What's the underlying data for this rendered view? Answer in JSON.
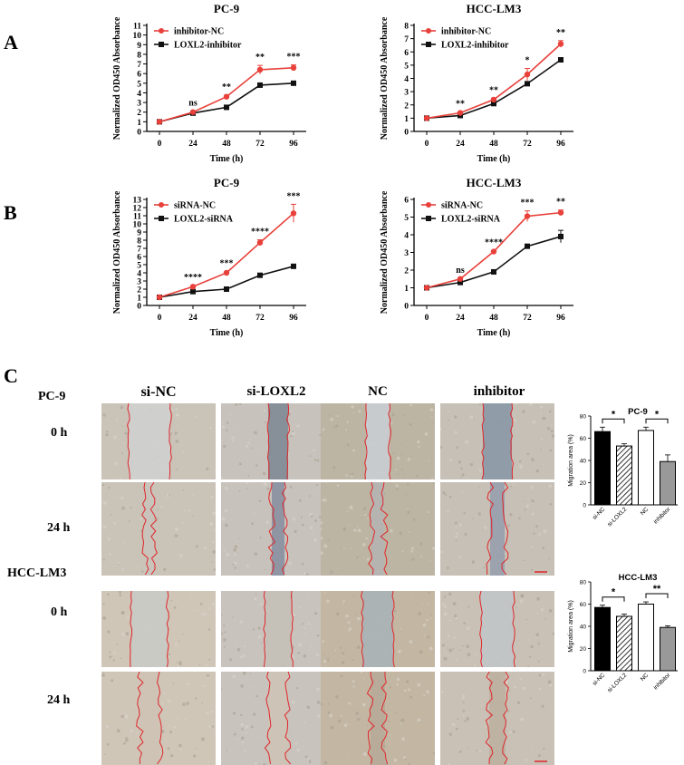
{
  "panels": {
    "A": "A",
    "B": "B",
    "C": "C"
  },
  "colors": {
    "red": "#e8403a",
    "black": "#111111",
    "grid_red": "#e0262b"
  },
  "chart_data": [
    {
      "type": "line",
      "title": "PC-9",
      "xlabel": "Time (h)",
      "ylabel": "Normalized OD450 Absorbance",
      "x": [
        0,
        24,
        48,
        72,
        96
      ],
      "xticks": [
        "0",
        "24",
        "48",
        "72",
        "96"
      ],
      "ylim": [
        0,
        11
      ],
      "yticks": [
        0,
        1,
        2,
        3,
        4,
        5,
        6,
        7,
        8,
        9,
        10,
        11
      ],
      "series": [
        {
          "name": "inhibitor-NC",
          "color": "#e8403a",
          "values": [
            1,
            2.0,
            3.6,
            6.4,
            6.6
          ],
          "err": [
            0.05,
            0.1,
            0.15,
            0.45,
            0.3
          ]
        },
        {
          "name": "LOXL2-inhibitor",
          "color": "#111111",
          "values": [
            1,
            1.9,
            2.5,
            4.8,
            5.0
          ],
          "err": [
            0.05,
            0.08,
            0.1,
            0.15,
            0.1
          ]
        }
      ],
      "annotations": [
        "",
        "ns",
        "**",
        "**",
        "***"
      ]
    },
    {
      "type": "line",
      "title": "HCC-LM3",
      "xlabel": "Time (h)",
      "ylabel": "Normalized OD450 Absorbance",
      "x": [
        0,
        24,
        48,
        72,
        96
      ],
      "xticks": [
        "0",
        "24",
        "48",
        "72",
        "96"
      ],
      "ylim": [
        0,
        8
      ],
      "yticks": [
        0,
        1,
        2,
        3,
        4,
        5,
        6,
        7,
        8
      ],
      "series": [
        {
          "name": "inhibitor-NC",
          "color": "#e8403a",
          "values": [
            1,
            1.4,
            2.4,
            4.3,
            6.6
          ],
          "err": [
            0.05,
            0.08,
            0.1,
            0.45,
            0.25
          ]
        },
        {
          "name": "LOXL2-inhibitor",
          "color": "#111111",
          "values": [
            1,
            1.2,
            2.1,
            3.6,
            5.4
          ],
          "err": [
            0.05,
            0.05,
            0.08,
            0.12,
            0.08
          ]
        }
      ],
      "annotations": [
        "",
        "**",
        "**",
        "*",
        "**"
      ]
    },
    {
      "type": "line",
      "title": "PC-9",
      "xlabel": "Time (h)",
      "ylabel": "Normalized OD450 Absorbance",
      "x": [
        0,
        24,
        48,
        72,
        96
      ],
      "xticks": [
        "0",
        "24",
        "48",
        "72",
        "96"
      ],
      "ylim": [
        0,
        13
      ],
      "yticks": [
        0,
        1,
        2,
        3,
        4,
        5,
        6,
        7,
        8,
        9,
        10,
        11,
        12,
        13
      ],
      "series": [
        {
          "name": "siRNA-NC",
          "color": "#e8403a",
          "values": [
            1,
            2.3,
            4.0,
            7.7,
            11.3
          ],
          "err": [
            0.05,
            0.15,
            0.15,
            0.35,
            1.1
          ]
        },
        {
          "name": "LOXL2-siRNA",
          "color": "#111111",
          "values": [
            1,
            1.7,
            2.0,
            3.7,
            4.8
          ],
          "err": [
            0.05,
            0.08,
            0.1,
            0.1,
            0.1
          ]
        }
      ],
      "annotations": [
        "",
        "****",
        "***",
        "****",
        "***"
      ]
    },
    {
      "type": "line",
      "title": "HCC-LM3",
      "xlabel": "Time (h)",
      "ylabel": "Normalized OD450 Absorbance",
      "x": [
        0,
        24,
        48,
        72,
        96
      ],
      "xticks": [
        "0",
        "24",
        "48",
        "72",
        "96"
      ],
      "ylim": [
        0,
        6
      ],
      "yticks": [
        0,
        1,
        2,
        3,
        4,
        5,
        6
      ],
      "series": [
        {
          "name": "siRNA-NC",
          "color": "#e8403a",
          "values": [
            1,
            1.5,
            3.05,
            5.05,
            5.25
          ],
          "err": [
            0.03,
            0.05,
            0.05,
            0.3,
            0.15
          ]
        },
        {
          "name": "LOXL2-siRNA",
          "color": "#111111",
          "values": [
            1,
            1.3,
            1.9,
            3.35,
            3.9
          ],
          "err": [
            0.03,
            0.05,
            0.05,
            0.05,
            0.35
          ]
        }
      ],
      "annotations": [
        "",
        "ns",
        "****",
        "***",
        "**"
      ]
    },
    {
      "type": "bar",
      "title": "PC-9",
      "ylabel": "Migration area (%)",
      "categories": [
        "si-NC",
        "si-LOXL2",
        "NC",
        "inhibitor"
      ],
      "values": [
        66,
        53,
        67,
        39
      ],
      "err": [
        4,
        2,
        3,
        6
      ],
      "ylim": [
        0,
        80
      ],
      "yticks": [
        0,
        20,
        40,
        60,
        80
      ],
      "fills": [
        "#000000",
        "hatch",
        "#ffffff",
        "#999999"
      ],
      "comparisons": [
        {
          "pair": [
            0,
            1
          ],
          "label": "*"
        },
        {
          "pair": [
            2,
            3
          ],
          "label": "*"
        }
      ]
    },
    {
      "type": "bar",
      "title": "HCC-LM3",
      "ylabel": "Migration area (%)",
      "categories": [
        "si-NC",
        "si-LOXL2",
        "NC",
        "inhibitor"
      ],
      "values": [
        57,
        49,
        60,
        39
      ],
      "err": [
        2,
        2,
        2,
        1.5
      ],
      "ylim": [
        0,
        80
      ],
      "yticks": [
        0,
        20,
        40,
        60,
        80
      ],
      "fills": [
        "#000000",
        "hatch",
        "#ffffff",
        "#999999"
      ],
      "comparisons": [
        {
          "pair": [
            0,
            1
          ],
          "label": "*"
        },
        {
          "pair": [
            2,
            3
          ],
          "label": "**"
        }
      ]
    }
  ],
  "micro": {
    "columns": [
      "si-NC",
      "si-LOXL2",
      "NC",
      "inhibitor"
    ],
    "cell_lines": [
      "PC-9",
      "HCC-LM3"
    ],
    "timepoints": [
      "0 h",
      "24 h"
    ]
  }
}
